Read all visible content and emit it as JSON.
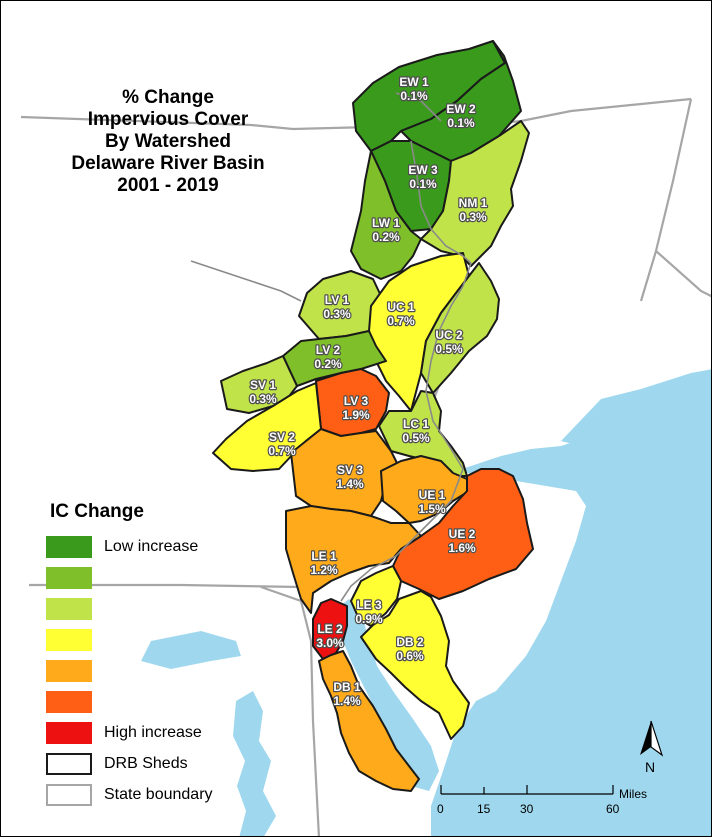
{
  "title_lines": [
    "% Change",
    "Impervious Cover",
    "By Watershed",
    "Delaware River Basin",
    "2001 -  2019"
  ],
  "legend": {
    "title": "IC Change",
    "items": [
      {
        "color": "#3a9a1c",
        "label": "Low increase"
      },
      {
        "color": "#7ebf2a",
        "label": ""
      },
      {
        "color": "#c1e34a",
        "label": ""
      },
      {
        "color": "#ffff33",
        "label": ""
      },
      {
        "color": "#ffaa1a",
        "label": ""
      },
      {
        "color": "#ff5f14",
        "label": ""
      },
      {
        "color": "#ee1111",
        "label": "High increase"
      },
      {
        "color": "#ffffff",
        "label": "DRB Sheds"
      },
      {
        "color": "#ffffff",
        "label": "State boundary"
      }
    ]
  },
  "watersheds": [
    {
      "code": "EW 1",
      "change": "0.1%",
      "color": "#3a9a1c"
    },
    {
      "code": "EW 2",
      "change": "0.1%",
      "color": "#3a9a1c"
    },
    {
      "code": "EW 3",
      "change": "0.1%",
      "color": "#3a9a1c"
    },
    {
      "code": "LW 1",
      "change": "0.2%",
      "color": "#7ebf2a"
    },
    {
      "code": "NM 1",
      "change": "0.3%",
      "color": "#c1e34a"
    },
    {
      "code": "LV 1",
      "change": "0.3%",
      "color": "#c1e34a"
    },
    {
      "code": "UC 1",
      "change": "0.7%",
      "color": "#ffff33"
    },
    {
      "code": "UC 2",
      "change": "0.5%",
      "color": "#c1e34a"
    },
    {
      "code": "LV 2",
      "change": "0.2%",
      "color": "#7ebf2a"
    },
    {
      "code": "SV 1",
      "change": "0.3%",
      "color": "#c1e34a"
    },
    {
      "code": "LV 3",
      "change": "1.9%",
      "color": "#ff5f14"
    },
    {
      "code": "SV 2",
      "change": "0.7%",
      "color": "#ffff33"
    },
    {
      "code": "LC 1",
      "change": "0.5%",
      "color": "#c1e34a"
    },
    {
      "code": "SV 3",
      "change": "1.4%",
      "color": "#ffaa1a"
    },
    {
      "code": "UE 1",
      "change": "1.5%",
      "color": "#ffaa1a"
    },
    {
      "code": "UE 2",
      "change": "1.6%",
      "color": "#ff5f14"
    },
    {
      "code": "LE 1",
      "change": "1.2%",
      "color": "#ffaa1a"
    },
    {
      "code": "LE 3",
      "change": "0.9%",
      "color": "#ffff33"
    },
    {
      "code": "LE 2",
      "change": "3.0%",
      "color": "#ee1111"
    },
    {
      "code": "DB 2",
      "change": "0.6%",
      "color": "#ffff33"
    },
    {
      "code": "DB 1",
      "change": "1.4%",
      "color": "#ffaa1a"
    }
  ],
  "scale_bar": {
    "unit": "Miles",
    "ticks": [
      "0",
      "15",
      "30",
      "60"
    ]
  },
  "north_arrow": {
    "label": "N"
  },
  "colors": {
    "water": "#9fd8ee",
    "land": "#ffffff",
    "state_boundary": "#a6a6a6",
    "shed_outline": "#1a1a1a"
  }
}
